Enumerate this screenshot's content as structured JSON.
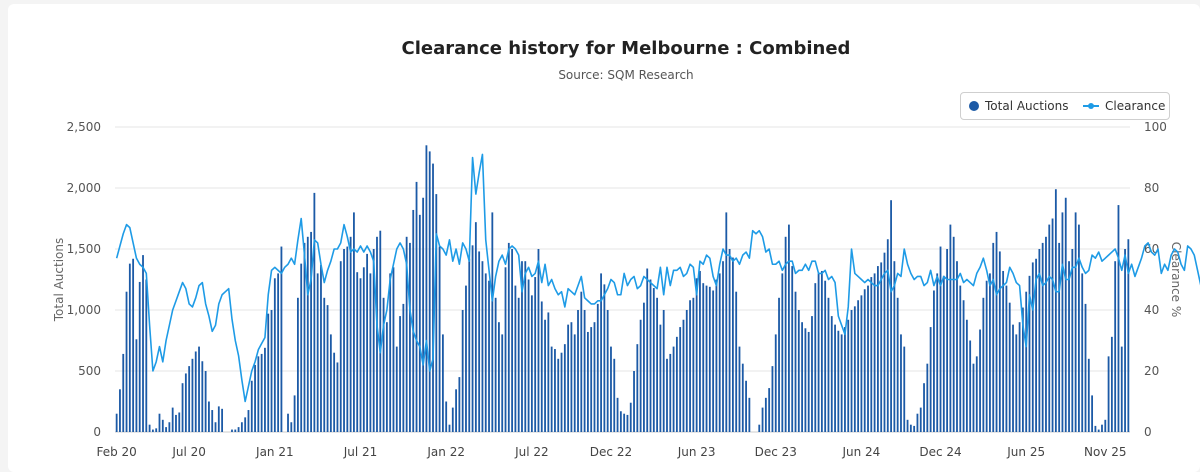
{
  "chart_data": {
    "type": "bar+line",
    "title": "Clearance history for Melbourne : Combined",
    "subtitle": "Source: SQM Research",
    "ylabel_left": "Total Auctions",
    "ylabel_right": "Clearance %",
    "ylim_left": [
      0,
      2500
    ],
    "ylim_right": [
      0,
      100
    ],
    "yticks_left": [
      "0",
      "500",
      "1,000",
      "1,500",
      "2,000",
      "2,500"
    ],
    "yticks_right": [
      "0",
      "20",
      "40",
      "60",
      "80",
      "100"
    ],
    "x_tick_labels": [
      "Feb 20",
      "Jul 20",
      "Jan 21",
      "Jul 21",
      "Jan 22",
      "Jul 22",
      "Dec 22",
      "Jun 23",
      "Dec 23",
      "Jun 24",
      "Dec 24",
      "Jun 25",
      "Nov 25"
    ],
    "x_tick_positions_week": [
      0,
      22,
      48,
      74,
      100,
      126,
      150,
      176,
      200,
      226,
      250,
      276,
      300
    ],
    "legend": [
      "Total Auctions",
      "Clearance"
    ],
    "colors": {
      "bars": "#1c5aa6",
      "line": "#1e9be6",
      "grid": "#e6e6e6"
    },
    "series": [
      {
        "name": "Total Auctions",
        "values": [
          150,
          350,
          640,
          1150,
          1380,
          1420,
          760,
          1230,
          1450,
          1250,
          60,
          20,
          30,
          150,
          100,
          40,
          80,
          200,
          140,
          160,
          400,
          480,
          540,
          600,
          660,
          700,
          580,
          500,
          250,
          180,
          80,
          210,
          190,
          0,
          0,
          20,
          20,
          40,
          80,
          120,
          180,
          420,
          550,
          620,
          640,
          690,
          970,
          1000,
          1260,
          1300,
          1520,
          0,
          150,
          80,
          300,
          1100,
          1380,
          1550,
          1600,
          1640,
          1960,
          1300,
          1370,
          1100,
          1040,
          800,
          650,
          570,
          1400,
          1500,
          1520,
          1600,
          1800,
          1310,
          1260,
          1350,
          1460,
          1300,
          1500,
          1600,
          1650,
          1100,
          900,
          1300,
          1350,
          700,
          950,
          1050,
          1600,
          1550,
          1820,
          2050,
          1780,
          1920,
          2350,
          2300,
          2200,
          1950,
          1520,
          800,
          250,
          60,
          200,
          350,
          450,
          1000,
          1200,
          1420,
          1530,
          1720,
          1480,
          1400,
          1300,
          1240,
          1800,
          1100,
          900,
          800,
          1350,
          1550,
          1500,
          1200,
          1100,
          1400,
          1400,
          1250,
          1120,
          1270,
          1500,
          1070,
          920,
          980,
          700,
          680,
          600,
          650,
          720,
          880,
          900,
          800,
          1000,
          1150,
          1000,
          820,
          860,
          900,
          1050,
          1300,
          1210,
          1000,
          700,
          600,
          280,
          170,
          150,
          140,
          240,
          500,
          720,
          920,
          1060,
          1340,
          1250,
          1180,
          1100,
          880,
          1000,
          600,
          640,
          700,
          780,
          860,
          920,
          1000,
          1080,
          1100,
          1260,
          1320,
          1220,
          1200,
          1190,
          1160,
          1250,
          1300,
          1400,
          1800,
          1500,
          1430,
          1150,
          700,
          560,
          420,
          280,
          0,
          0,
          60,
          200,
          280,
          360,
          540,
          800,
          1100,
          1300,
          1600,
          1700,
          1360,
          1150,
          1000,
          900,
          850,
          820,
          950,
          1220,
          1300,
          1320,
          1240,
          1100,
          950,
          880,
          830,
          800,
          860,
          920,
          1000,
          1030,
          1080,
          1120,
          1170,
          1200,
          1270,
          1300,
          1360,
          1390,
          1470,
          1580,
          1900,
          1400,
          1100,
          800,
          700,
          100,
          60,
          50,
          150,
          200,
          400,
          560,
          860,
          1160,
          1300,
          1520,
          1280,
          1500,
          1700,
          1600,
          1400,
          1200,
          1080,
          920,
          750,
          560,
          620,
          840,
          1100,
          1240,
          1300,
          1550,
          1640,
          1480,
          1320,
          1200,
          1060,
          880,
          800,
          900,
          1020,
          1150,
          1280,
          1390,
          1420,
          1500,
          1550,
          1600,
          1700,
          1750,
          1990,
          1550,
          1800,
          1920,
          1400,
          1500,
          1800,
          1700,
          1300,
          1050,
          600,
          300,
          50,
          20,
          60,
          100,
          620,
          780,
          1400,
          1860,
          700,
          1500,
          1580
        ],
        "note": "approximate weekly values read off the chart"
      },
      {
        "name": "Clearance",
        "values": [
          57,
          61,
          65,
          68,
          67,
          62,
          57,
          55,
          54,
          52,
          35,
          20,
          23,
          28,
          23,
          30,
          35,
          40,
          43,
          46,
          49,
          47,
          42,
          41,
          44,
          48,
          49,
          42,
          38,
          33,
          35,
          42,
          45,
          46,
          47,
          37,
          30,
          25,
          17,
          10,
          15,
          20,
          23,
          27,
          29,
          31,
          45,
          53,
          54,
          53,
          52,
          54,
          55,
          57,
          55,
          63,
          70,
          58,
          45,
          50,
          63,
          62,
          55,
          49,
          53,
          56,
          60,
          60,
          62,
          68,
          64,
          59,
          60,
          59,
          61,
          59,
          61,
          59,
          56,
          35,
          26,
          35,
          40,
          50,
          55,
          60,
          62,
          60,
          55,
          40,
          33,
          30,
          28,
          22,
          30,
          20,
          24,
          65,
          61,
          60,
          58,
          63,
          56,
          60,
          55,
          62,
          60,
          56,
          90,
          78,
          85,
          91,
          63,
          53,
          43,
          51,
          56,
          58,
          55,
          60,
          61,
          60,
          58,
          46,
          52,
          54,
          51,
          52,
          56,
          49,
          55,
          48,
          50,
          47,
          45,
          46,
          41,
          47,
          46,
          45,
          48,
          51,
          44,
          43,
          42,
          42,
          43,
          43,
          45,
          47,
          50,
          49,
          45,
          45,
          52,
          48,
          50,
          51,
          47,
          48,
          51,
          50,
          49,
          48,
          47,
          54,
          45,
          54,
          48,
          53,
          53,
          54,
          51,
          52,
          55,
          54,
          45,
          56,
          55,
          58,
          57,
          51,
          48,
          55,
          60,
          58,
          58,
          56,
          57,
          55,
          58,
          59,
          57,
          66,
          65,
          66,
          64,
          59,
          60,
          55,
          55,
          56,
          53,
          55,
          56,
          56,
          52,
          53,
          53,
          55,
          53,
          56,
          56,
          52,
          52,
          53,
          50,
          51,
          49,
          38,
          35,
          32,
          41,
          60,
          52,
          51,
          50,
          49,
          50,
          49,
          48,
          48,
          50,
          52,
          53,
          46,
          48,
          52,
          51,
          60,
          55,
          52,
          50,
          51,
          51,
          48,
          49,
          53,
          48,
          51,
          48,
          51,
          50,
          50,
          50,
          50,
          52,
          49,
          50,
          49,
          48,
          52,
          54,
          57,
          53,
          48,
          50,
          45,
          47,
          48,
          49,
          54,
          52,
          49,
          48,
          35,
          28,
          45,
          40,
          50,
          52,
          48,
          49,
          51,
          50,
          46,
          46,
          55,
          50,
          50,
          54,
          54,
          57,
          54,
          52,
          53,
          58,
          57,
          59,
          56,
          57,
          58,
          59,
          60,
          57,
          53,
          58,
          52,
          55,
          51,
          54,
          57,
          61,
          62,
          59,
          58,
          60,
          52,
          55,
          53,
          58,
          60,
          59,
          55,
          53,
          61,
          60,
          58,
          53,
          48,
          47,
          46,
          54,
          50,
          47,
          54,
          43,
          47,
          51,
          47
        ],
        "note": "approximate weekly clearance % read off the chart"
      }
    ]
  }
}
